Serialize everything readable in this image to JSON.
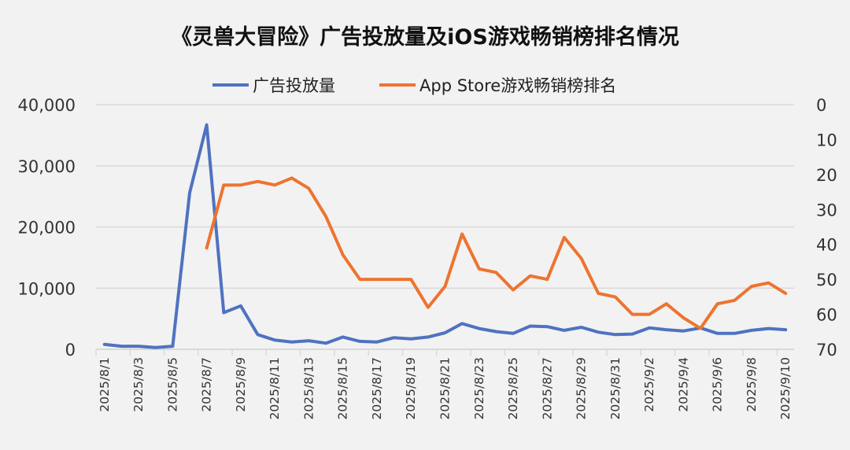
{
  "chart_data": {
    "type": "line",
    "title": "《灵兽大冒险》广告投放量及iOS游戏畅销榜排名情况",
    "x": [
      "2025/8/1",
      "2025/8/2",
      "2025/8/3",
      "2025/8/4",
      "2025/8/5",
      "2025/8/6",
      "2025/8/7",
      "2025/8/8",
      "2025/8/9",
      "2025/8/10",
      "2025/8/11",
      "2025/8/12",
      "2025/8/13",
      "2025/8/14",
      "2025/8/15",
      "2025/8/16",
      "2025/8/17",
      "2025/8/18",
      "2025/8/19",
      "2025/8/20",
      "2025/8/21",
      "2025/8/22",
      "2025/8/23",
      "2025/8/24",
      "2025/8/25",
      "2025/8/26",
      "2025/8/27",
      "2025/8/28",
      "2025/8/29",
      "2025/8/30",
      "2025/8/31",
      "2025/9/1",
      "2025/9/2",
      "2025/9/3",
      "2025/9/4",
      "2025/9/5",
      "2025/9/6",
      "2025/9/7",
      "2025/9/8",
      "2025/9/9",
      "2025/9/10"
    ],
    "x_tick_labels": [
      "2025/8/1",
      "2025/8/3",
      "2025/8/5",
      "2025/8/7",
      "2025/8/9",
      "2025/8/11",
      "2025/8/13",
      "2025/8/15",
      "2025/8/17",
      "2025/8/19",
      "2025/8/21",
      "2025/8/23",
      "2025/8/25",
      "2025/8/27",
      "2025/8/29",
      "2025/8/31",
      "2025/9/2",
      "2025/9/4",
      "2025/9/6",
      "2025/9/8",
      "2025/9/10"
    ],
    "series": [
      {
        "name": "广告投放量",
        "axis": "left",
        "color": "#4f72c1",
        "values": [
          800,
          500,
          500,
          300,
          500,
          25600,
          36700,
          6000,
          7100,
          2400,
          1500,
          1200,
          1400,
          1000,
          2000,
          1300,
          1200,
          1900,
          1700,
          2000,
          2700,
          4200,
          3400,
          2900,
          2600,
          3800,
          3700,
          3100,
          3600,
          2800,
          2400,
          2500,
          3500,
          3200,
          3000,
          3500,
          2600,
          2600,
          3100,
          3400,
          3200
        ]
      },
      {
        "name": "App Store游戏畅销榜排名",
        "axis": "right",
        "color": "#ed7430",
        "values": [
          null,
          null,
          null,
          null,
          null,
          null,
          41,
          23,
          23,
          22,
          23,
          21,
          24,
          32,
          43,
          50,
          50,
          50,
          50,
          58,
          52,
          37,
          47,
          48,
          53,
          49,
          50,
          38,
          44,
          54,
          55,
          60,
          60,
          57,
          61,
          64,
          57,
          56,
          52,
          51,
          54
        ]
      }
    ],
    "left_axis": {
      "ylim": [
        0,
        40000
      ],
      "ticks": [
        "0",
        "10,000",
        "20,000",
        "30,000",
        "40,000"
      ]
    },
    "right_axis": {
      "ylim": [
        0,
        70
      ],
      "reversed": true,
      "ticks": [
        "0",
        "10",
        "20",
        "30",
        "40",
        "50",
        "60",
        "70"
      ]
    },
    "grid": true,
    "legend": "top"
  }
}
